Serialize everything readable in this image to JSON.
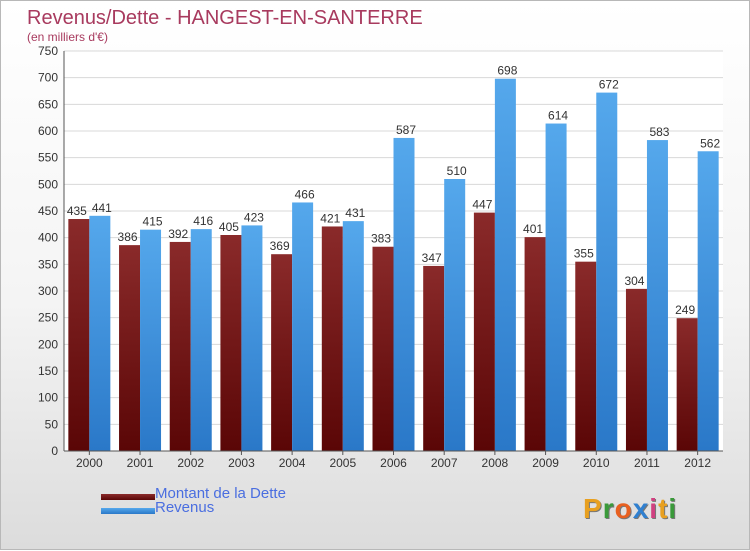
{
  "chart_data": {
    "type": "bar",
    "title": "Revenus/Dette - HANGEST-EN-SANTERRE",
    "subtitle": "(en milliers d'€)",
    "categories": [
      "2000",
      "2001",
      "2002",
      "2003",
      "2004",
      "2005",
      "2006",
      "2007",
      "2008",
      "2009",
      "2010",
      "2011",
      "2012"
    ],
    "series": [
      {
        "name": "Montant de la Dette",
        "color": "#7a1a1a",
        "values": [
          435,
          386,
          392,
          405,
          369,
          421,
          383,
          347,
          447,
          401,
          355,
          304,
          249
        ]
      },
      {
        "name": "Revenus",
        "color": "#4a9ee0",
        "values": [
          441,
          415,
          416,
          423,
          466,
          431,
          587,
          510,
          698,
          614,
          672,
          583,
          562
        ]
      }
    ],
    "ylim": [
      0,
      750
    ],
    "yticks": [
      0,
      50,
      100,
      150,
      200,
      250,
      300,
      350,
      400,
      450,
      500,
      550,
      600,
      650,
      700,
      750
    ],
    "grid": true,
    "legend_position": "bottom-left"
  },
  "logo": {
    "letters": [
      "P",
      "r",
      "o",
      "x",
      "i",
      "t",
      "i"
    ],
    "colors": [
      "#e8a020",
      "#3a9a3a",
      "#e86020",
      "#3080d0",
      "#d04080",
      "#e8a020",
      "#3a9a3a"
    ]
  }
}
